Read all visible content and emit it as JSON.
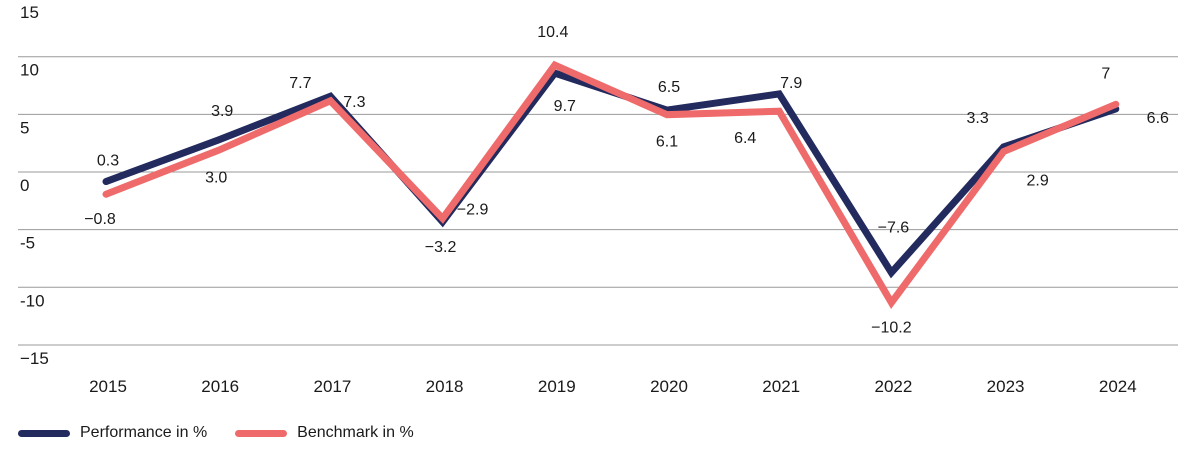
{
  "chart_data": {
    "type": "line",
    "categories": [
      "2015",
      "2016",
      "2017",
      "2018",
      "2019",
      "2020",
      "2021",
      "2022",
      "2023",
      "2024"
    ],
    "yticks": [
      "15",
      "10",
      "5",
      "0",
      "-5",
      "-10",
      "−15"
    ],
    "ylim": [
      -15,
      15
    ],
    "grid": true,
    "legend_position": "bottom-left",
    "series": [
      {
        "name": "Performance in %",
        "color": "#222a5e",
        "values": [
          0.3,
          3.9,
          7.7,
          -3.2,
          9.7,
          6.5,
          7.9,
          -7.6,
          3.3,
          6.6
        ],
        "labels": [
          "0.3",
          "3.9",
          "7.7",
          "−3.2",
          "9.7",
          "6.5",
          "7.9",
          "−7.6",
          "3.3",
          "6.6"
        ]
      },
      {
        "name": "Benchmark in %",
        "color": "#ef6b6b",
        "values": [
          -0.8,
          3.0,
          7.3,
          -2.9,
          10.4,
          6.1,
          6.4,
          -10.2,
          2.9,
          7.0
        ],
        "labels": [
          "−0.8",
          "3.0",
          "7.3",
          "−2.9",
          "10.4",
          "6.1",
          "6.4",
          "−10.2",
          "2.9",
          "7"
        ]
      }
    ]
  }
}
